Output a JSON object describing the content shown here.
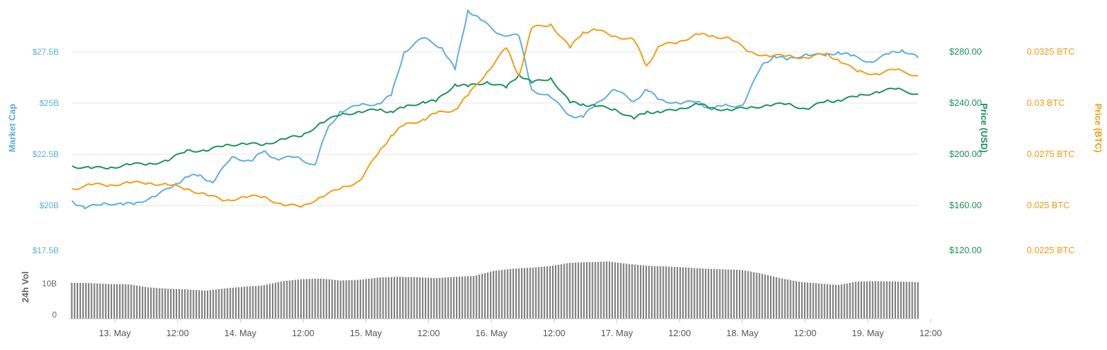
{
  "chart_data": [
    {
      "type": "line",
      "x_ticks": [
        "13. May",
        "12:00",
        "14. May",
        "12:00",
        "15. May",
        "12:00",
        "16. May",
        "12:00",
        "17. May",
        "12:00",
        "18. May",
        "12:00",
        "19. May",
        "12:00"
      ],
      "axes": {
        "market_cap": {
          "label": "Market Cap",
          "ticks": [
            "$17.5B",
            "$20B",
            "$22.5B",
            "$25B",
            "$27.5B"
          ],
          "range": [
            17.5,
            30
          ],
          "color": "#5DADE2"
        },
        "price_usd": {
          "label": "Price (USD)",
          "ticks": [
            "$120.00",
            "$160.00",
            "$200.00",
            "$240.00",
            "$280.00"
          ],
          "range": [
            120,
            320
          ],
          "color": "#17935B"
        },
        "price_btc": {
          "label": "Price (BTC)",
          "ticks": [
            "0.0225 BTC",
            "0.025 BTC",
            "0.0275 BTC",
            "0.03 BTC",
            "0.0325 BTC"
          ],
          "range": [
            0.0225,
            0.035
          ],
          "color": "#F39C12"
        }
      },
      "series": [
        {
          "key": "market_cap",
          "color": "#5DADE2",
          "x": [
            0,
            0.2,
            0.5,
            0.8,
            1,
            1.3,
            1.6,
            1.8,
            2,
            2.2,
            2.5,
            2.8,
            3,
            3.2,
            3.5,
            3.8,
            4,
            4.2,
            4.5,
            4.8,
            5,
            5.2,
            5.5,
            5.8,
            6,
            6.2,
            6.4,
            6.7,
            7,
            7.2,
            7.5,
            7.8,
            8,
            8.2,
            8.5,
            8.8,
            9,
            9.2,
            9.5,
            9.8,
            10,
            10.2,
            10.5,
            10.8,
            11,
            11.2,
            11.5,
            11.8,
            12,
            12.2,
            12.5,
            12.8,
            13,
            13.25
          ],
          "y": [
            20.0,
            19.6,
            19.9,
            19.8,
            19.9,
            20.2,
            20.8,
            21.2,
            21.3,
            20.9,
            22.2,
            22.0,
            22.5,
            22.1,
            22.2,
            21.8,
            23.6,
            24.5,
            24.8,
            24.9,
            25.3,
            27.5,
            28.2,
            27.7,
            26.6,
            29.6,
            29.1,
            28.4,
            28.3,
            25.6,
            25.2,
            24.3,
            24.2,
            24.9,
            25.6,
            25.0,
            25.6,
            25.1,
            24.9,
            25.0,
            24.6,
            24.8,
            24.8,
            26.8,
            27.3,
            27.1,
            27.4,
            27.3,
            27.5,
            27.3,
            27.0,
            27.4,
            27.6,
            27.2
          ]
        },
        {
          "key": "price_usd",
          "color": "#17935B",
          "x": [
            0,
            0.3,
            0.6,
            0.9,
            1.2,
            1.5,
            1.8,
            2.1,
            2.4,
            2.7,
            3,
            3.3,
            3.6,
            3.9,
            4.2,
            4.5,
            4.8,
            5,
            5.2,
            5.5,
            5.7,
            6,
            6.2,
            6.5,
            6.8,
            7,
            7.2,
            7.5,
            7.8,
            8,
            8.2,
            8.5,
            8.8,
            9,
            9.2,
            9.5,
            9.8,
            10,
            10.3,
            10.6,
            10.9,
            11.2,
            11.5,
            11.8,
            12,
            12.3,
            12.6,
            12.9,
            13.25
          ],
          "y": [
            188,
            186,
            187,
            189,
            190,
            192,
            201,
            200,
            205,
            206,
            205,
            210,
            212,
            223,
            229,
            232,
            233,
            232,
            235,
            240,
            240,
            254,
            252,
            256,
            251,
            262,
            255,
            259,
            239,
            238,
            236,
            234,
            226,
            232,
            231,
            234,
            238,
            235,
            233,
            235,
            237,
            238,
            234,
            240,
            241,
            244,
            248,
            250,
            246
          ]
        },
        {
          "key": "price_btc",
          "color": "#F39C12",
          "x": [
            0,
            0.3,
            0.6,
            0.9,
            1.2,
            1.5,
            1.8,
            2.1,
            2.4,
            2.7,
            3,
            3.3,
            3.6,
            3.9,
            4.2,
            4.5,
            4.8,
            5,
            5.2,
            5.5,
            5.7,
            6,
            6.2,
            6.5,
            6.8,
            7,
            7.2,
            7.5,
            7.8,
            8,
            8.2,
            8.5,
            8.8,
            9,
            9.2,
            9.5,
            9.8,
            10,
            10.3,
            10.6,
            10.9,
            11.2,
            11.5,
            11.8,
            12,
            12.3,
            12.6,
            12.9,
            13.25
          ],
          "y": [
            0.0256,
            0.0258,
            0.0258,
            0.0259,
            0.0259,
            0.0258,
            0.0256,
            0.0253,
            0.025,
            0.0252,
            0.0252,
            0.0248,
            0.0247,
            0.0252,
            0.0256,
            0.026,
            0.0274,
            0.0283,
            0.0288,
            0.0291,
            0.0294,
            0.0296,
            0.0303,
            0.0315,
            0.0327,
            0.0313,
            0.0337,
            0.0339,
            0.0327,
            0.0335,
            0.0336,
            0.0333,
            0.0331,
            0.0318,
            0.0328,
            0.033,
            0.0334,
            0.0333,
            0.0332,
            0.0325,
            0.0323,
            0.0323,
            0.0322,
            0.0324,
            0.0321,
            0.0315,
            0.0314,
            0.0316,
            0.0313
          ]
        }
      ]
    },
    {
      "type": "bar",
      "label": "24h Vol",
      "ticks": [
        "0",
        "10B"
      ],
      "ylim": [
        0,
        17.5
      ],
      "color": "#7F7F7F",
      "x": [
        0,
        0.3,
        0.6,
        0.9,
        1.2,
        1.5,
        1.8,
        2.1,
        2.4,
        2.7,
        3,
        3.3,
        3.6,
        3.9,
        4.2,
        4.5,
        4.8,
        5.1,
        5.4,
        5.7,
        6,
        6.3,
        6.6,
        6.9,
        7.2,
        7.5,
        7.8,
        8.1,
        8.4,
        8.7,
        9,
        9.3,
        9.6,
        9.9,
        10.2,
        10.5,
        10.8,
        11.1,
        11.4,
        11.7,
        12,
        12.3,
        12.6,
        12.9,
        13.25
      ],
      "values": [
        11.0,
        10.9,
        10.6,
        10.5,
        9.6,
        9.2,
        9.0,
        8.6,
        9.3,
        9.8,
        10.2,
        11.5,
        12.1,
        12.3,
        11.7,
        11.9,
        12.6,
        12.8,
        12.7,
        12.4,
        12.8,
        13.1,
        14.6,
        15.3,
        15.6,
        16.1,
        17.1,
        17.3,
        17.5,
        16.8,
        16.2,
        16.0,
        15.7,
        15.3,
        15.1,
        14.9,
        13.8,
        12.4,
        11.3,
        10.8,
        10.3,
        11.4,
        11.5,
        11.4,
        11.2
      ]
    }
  ]
}
